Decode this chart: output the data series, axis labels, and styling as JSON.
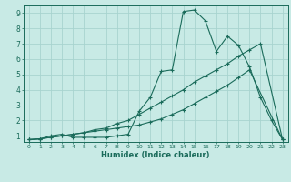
{
  "xlabel": "Humidex (Indice chaleur)",
  "bg_color": "#c8eae5",
  "grid_color": "#a8d4cf",
  "line_color": "#1a6b5a",
  "xlim": [
    -0.5,
    23.5
  ],
  "ylim": [
    0.6,
    9.5
  ],
  "xticks": [
    0,
    1,
    2,
    3,
    4,
    5,
    6,
    7,
    8,
    9,
    10,
    11,
    12,
    13,
    14,
    15,
    16,
    17,
    18,
    19,
    20,
    21,
    22,
    23
  ],
  "yticks": [
    1,
    2,
    3,
    4,
    5,
    6,
    7,
    8,
    9
  ],
  "line1_x": [
    0,
    1,
    2,
    3,
    4,
    5,
    6,
    7,
    8,
    9,
    10,
    11,
    12,
    13,
    14,
    15,
    16,
    17,
    18,
    19,
    20,
    21,
    22,
    23
  ],
  "line1_y": [
    0.75,
    0.8,
    1.0,
    1.1,
    0.9,
    0.9,
    0.9,
    0.9,
    1.0,
    1.1,
    2.6,
    3.5,
    5.2,
    5.3,
    9.1,
    9.2,
    8.5,
    6.5,
    7.5,
    6.9,
    5.5,
    3.5,
    2.0,
    0.75
  ],
  "line2_x": [
    0,
    1,
    2,
    3,
    4,
    5,
    6,
    7,
    8,
    9,
    10,
    11,
    12,
    13,
    14,
    15,
    16,
    17,
    18,
    19,
    20,
    21,
    23
  ],
  "line2_y": [
    0.75,
    0.8,
    0.9,
    1.0,
    1.1,
    1.2,
    1.4,
    1.5,
    1.8,
    2.0,
    2.4,
    2.8,
    3.2,
    3.6,
    4.0,
    4.5,
    4.9,
    5.3,
    5.7,
    6.2,
    6.6,
    7.0,
    0.75
  ],
  "line3_x": [
    0,
    1,
    2,
    3,
    4,
    5,
    6,
    7,
    8,
    9,
    10,
    11,
    12,
    13,
    14,
    15,
    16,
    17,
    18,
    19,
    20,
    23
  ],
  "line3_y": [
    0.75,
    0.8,
    0.9,
    1.0,
    1.1,
    1.2,
    1.3,
    1.4,
    1.5,
    1.6,
    1.7,
    1.9,
    2.1,
    2.4,
    2.7,
    3.1,
    3.5,
    3.9,
    4.3,
    4.8,
    5.3,
    0.75
  ]
}
